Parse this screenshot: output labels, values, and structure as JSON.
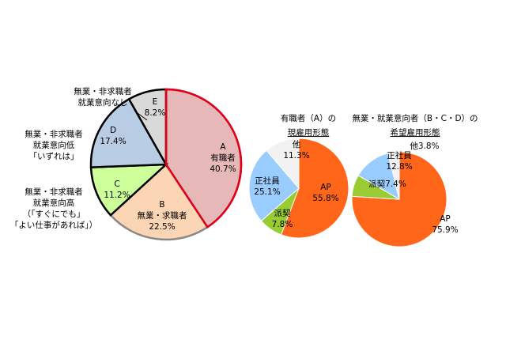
{
  "chart_data": [
    {
      "type": "pie",
      "categories": [
        [
          "A",
          "有職者"
        ],
        [
          "B",
          "無業・求職者"
        ],
        [
          "C"
        ],
        [
          "D"
        ],
        [
          "E"
        ]
      ],
      "values": [
        40.7,
        22.5,
        11.2,
        17.4,
        8.2
      ],
      "value_labels": [
        "40.7%",
        "22.5%",
        "11.2%",
        "17.4%",
        "8.2%"
      ],
      "colors": [
        "#e6b8b7",
        "#fcd5b4",
        "#ccff99",
        "#b8cce4",
        "#d9d9d9"
      ],
      "edge_colors": [
        "#e0001b",
        "#888888",
        "#000000",
        "#000000",
        "#000000"
      ],
      "annotations": [
        [
          "無業・非求職者",
          "就業意向なし"
        ],
        [
          "無業・非求職者",
          "就業意向低",
          "「いずれは」"
        ],
        [
          "無業・非求職者",
          "就業意向高",
          "（「すぐにでも」",
          "「よい仕事があれば」）"
        ]
      ]
    },
    {
      "type": "pie",
      "title": "有職者（A）の",
      "subtitle": "現雇用形態",
      "categories": [
        [
          "AP"
        ],
        [
          "派契"
        ],
        [
          "正社員"
        ],
        [
          "他"
        ]
      ],
      "values": [
        55.8,
        7.8,
        25.1,
        11.3
      ],
      "value_labels": [
        "55.8%",
        "7.8%",
        "25.1%",
        "11.3%"
      ],
      "colors": [
        "#ff6619",
        "#99cc33",
        "#99ccff",
        "#f2f2f2"
      ]
    },
    {
      "type": "pie",
      "title": "無業・就業意向者（B・C・D）の",
      "subtitle": "希望雇用形態",
      "categories": [
        [
          "AP"
        ],
        [
          "派契"
        ],
        [
          "正社員"
        ],
        [
          "他"
        ]
      ],
      "values": [
        75.9,
        7.4,
        12.8,
        3.8
      ],
      "value_labels": [
        "75.9%",
        "7.4%",
        "12.8%",
        "3.8%"
      ],
      "colors": [
        "#ff6619",
        "#99cc33",
        "#99ccff",
        "#f2f2f2"
      ]
    }
  ]
}
